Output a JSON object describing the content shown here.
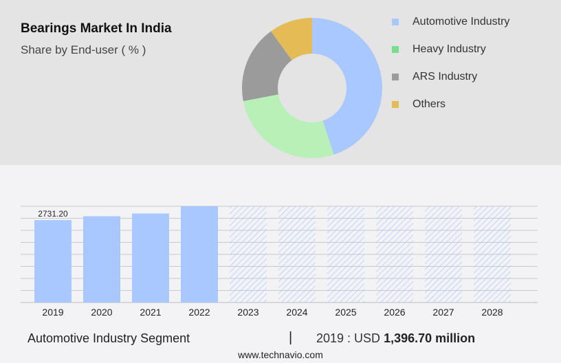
{
  "header": {
    "title": "Bearings Market In India",
    "subtitle": "Share by End-user ( % )"
  },
  "colors": {
    "automotive": "#a8c8ff",
    "heavy": "#b8f0b8",
    "ars": "#9b9b9b",
    "others": "#e4bb55",
    "heavy_legend": "#77e08e",
    "forecast_hatch": "#a8c8ff",
    "grid": "#bbbbbb"
  },
  "footer": {
    "segment_label": "Automotive Industry Segment",
    "divider": "|",
    "year_prefix": "2019 : USD",
    "value": "1,396.70 million",
    "source": "www.technavio.com"
  },
  "chart_data": [
    {
      "type": "pie",
      "title": "Share by End-user ( % )",
      "categories": [
        "Automotive Industry",
        "Heavy Industry",
        "ARS Industry",
        "Others"
      ],
      "values": [
        45,
        27,
        18,
        10
      ],
      "legend": "right"
    },
    {
      "type": "bar",
      "categories": [
        "2019",
        "2020",
        "2021",
        "2022",
        "2023",
        "2024",
        "2025",
        "2026",
        "2027",
        "2028"
      ],
      "values": [
        2731.2,
        2860,
        2950,
        3190,
        3190,
        3190,
        3190,
        3190,
        3190,
        3190
      ],
      "forecast_from_index": 4,
      "data_labels": [
        "2731.20"
      ],
      "ylim": [
        0,
        3190
      ],
      "grid": true
    }
  ]
}
